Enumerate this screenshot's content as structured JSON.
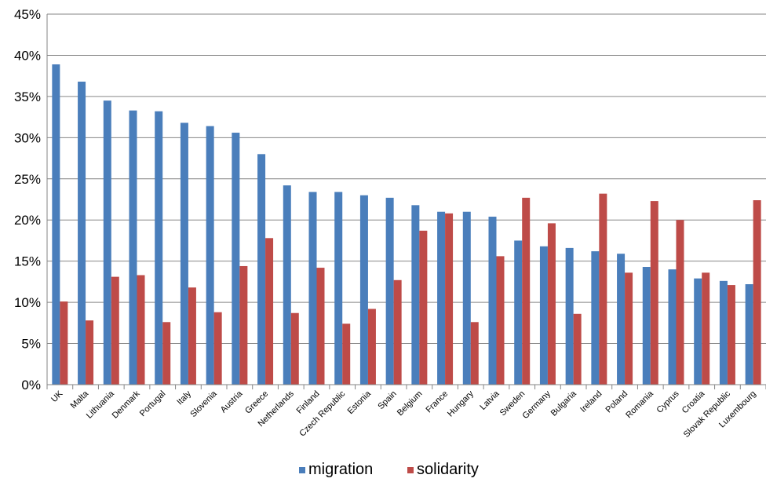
{
  "chart_data": {
    "type": "bar",
    "categories": [
      "UK",
      "Malta",
      "Lithuania",
      "Denmark",
      "Portugal",
      "Italy",
      "Slovenia",
      "Austria",
      "Greece",
      "Netherlands",
      "Finland",
      "Czech Republic",
      "Estonia",
      "Spain",
      "Belgium",
      "France",
      "Hungary",
      "Latvia",
      "Sweden",
      "Germany",
      "Bulgaria",
      "Ireland",
      "Poland",
      "Romania",
      "Cyprus",
      "Croatia",
      "Slovak Republic",
      "Luxembourg"
    ],
    "series": [
      {
        "name": "migration",
        "color": "#4a7ebb",
        "values": [
          38.9,
          36.8,
          34.5,
          33.3,
          33.2,
          31.8,
          31.4,
          30.6,
          28.0,
          24.2,
          23.4,
          23.4,
          23.0,
          22.7,
          21.8,
          21.0,
          21.0,
          20.4,
          17.5,
          16.8,
          16.6,
          16.2,
          15.9,
          14.3,
          14.0,
          12.9,
          12.6,
          12.2
        ]
      },
      {
        "name": "solidarity",
        "color": "#be4b48",
        "values": [
          10.1,
          7.8,
          13.1,
          13.3,
          7.6,
          11.8,
          8.8,
          14.4,
          17.8,
          8.7,
          14.2,
          7.4,
          9.2,
          12.7,
          18.7,
          20.8,
          7.6,
          15.6,
          22.7,
          19.6,
          8.6,
          23.2,
          13.6,
          22.3,
          20.0,
          13.6,
          12.1,
          22.4
        ]
      }
    ],
    "ylim": [
      0,
      45
    ],
    "yticks": [
      0,
      5,
      10,
      15,
      20,
      25,
      30,
      35,
      40,
      45
    ],
    "ytick_labels": [
      "0%",
      "5%",
      "10%",
      "15%",
      "20%",
      "25%",
      "30%",
      "35%",
      "40%",
      "45%"
    ],
    "grid": true,
    "legend_position": "bottom"
  }
}
